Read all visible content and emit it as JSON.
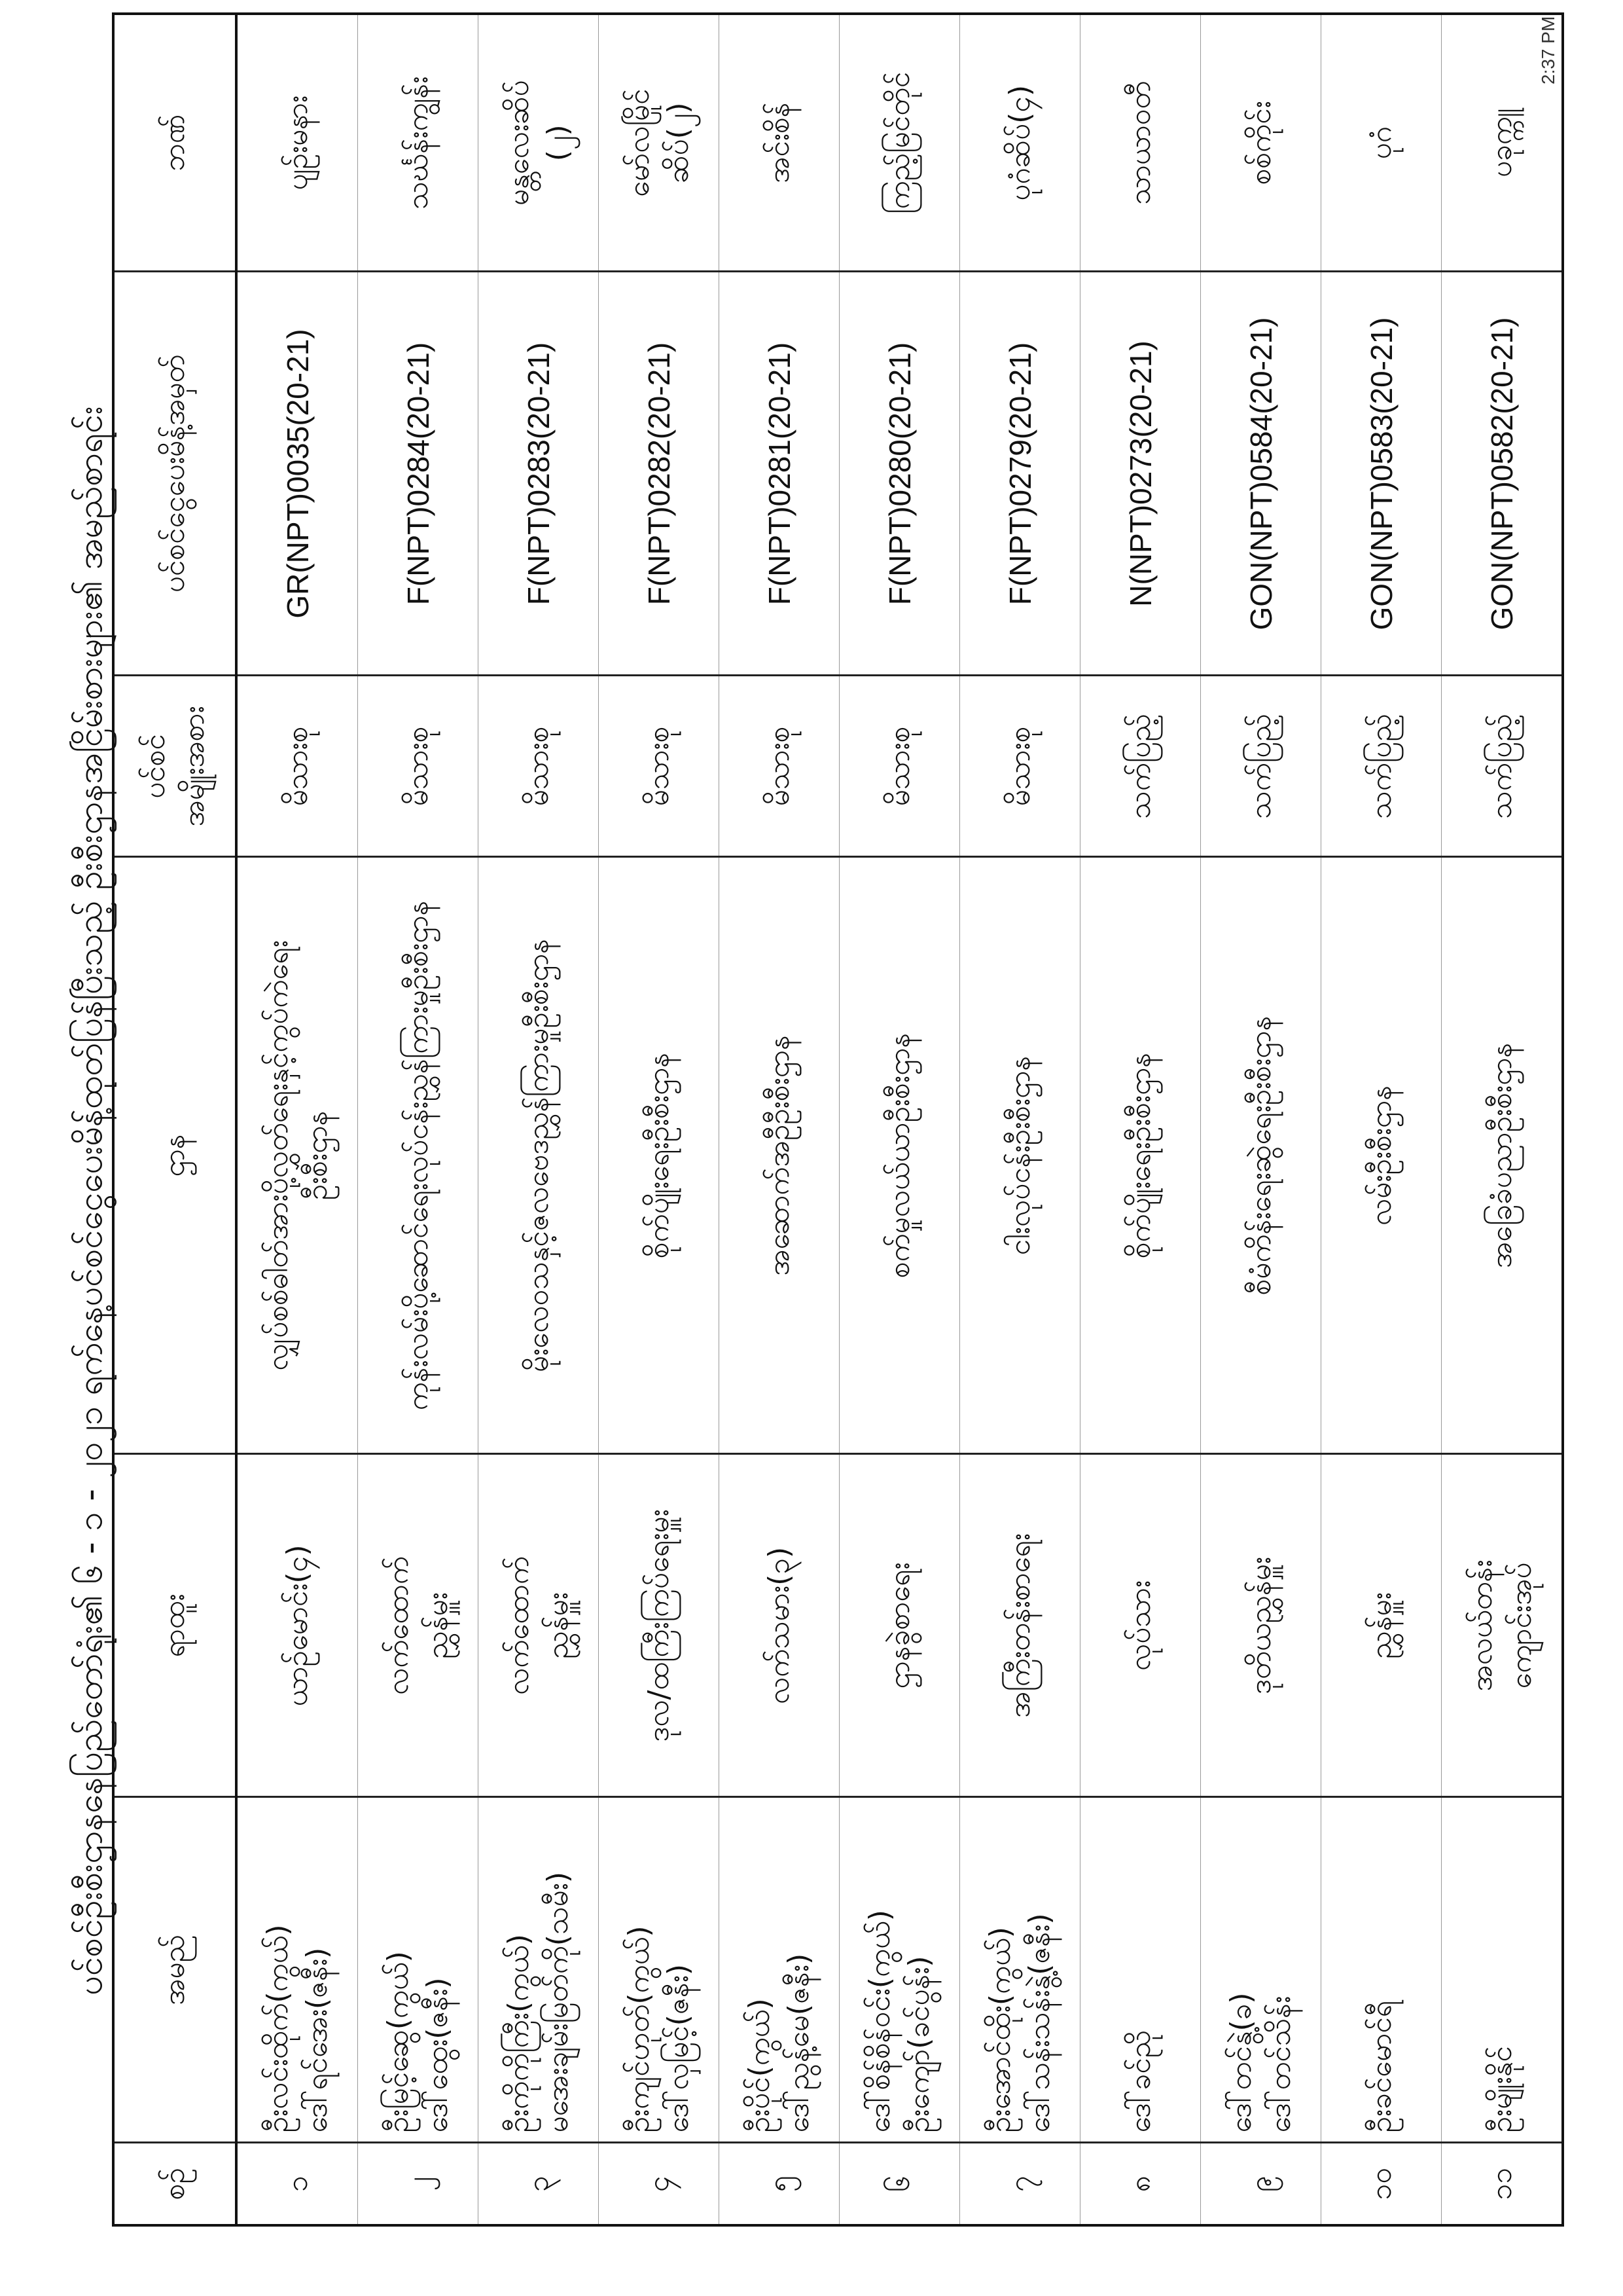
{
  "title": "ပင်စင်ဦးစီးဌာနနေပြည်တော်ရုံး၏ ၆ - ၁ - ၂၀၂၁ ရက်နေ့ပင်စင်ငွေပေးမိန့်ထုတ်ပြန်ပြီးသည့် ဦးစီးဌာနအငြိမ်းစားများ၏ အမည်စာရင်း",
  "timestamp": "2:37 PM",
  "headers": {
    "no": "စဉ်",
    "name": "အမည်",
    "position": "ရာထူး",
    "department": "ဌာန",
    "pension_type": [
      "ပင်စင်",
      "အမျိုးအစား"
    ],
    "order_no": "ပင်စင်ငွေပေးမိန့်အမှတ်",
    "bank": "ဘဏ်"
  },
  "rows": [
    {
      "no": "၁",
      "name": [
        "ဦးလင်းထိုက်(ကွယ်)",
        "ဒေါ်ရင်အေး(ဇနီး)"
      ],
      "position": [
        "ယာဉ်မောင်း(၄)"
      ],
      "department": [
        "လျှပ်စစ်ဓါတ်အားပို့လွှတ်ရေးနှင့်ကွပ်ကဲရေး",
        "ဦးစီးဌာန"
      ],
      "pension_type": "မိသားစု",
      "order_no": "GR(NPT)0035(20-21)",
      "bank": [
        "ပျဉ်းမနား"
      ]
    },
    {
      "no": "၂",
      "name": [
        "ဦးမြင့်ဆွေ(ကွယ်)",
        "ဒေါ်ထွေး(ဇနီး)"
      ],
      "position": [
        "လက်ထောက်",
        "ညွှန်မှူး"
      ],
      "department": [
        "ကုန်းလမ်းပို့ဆောင်ရေးလုပ်ငန်းညွှန်ကြားမှုဦးစီးဌာန"
      ],
      "pension_type": "မိသားစု",
      "order_no": "F(NPT)0284(20-21)",
      "bank": [
        "သင်္ဃန်းကျွန်း"
      ]
    },
    {
      "no": "၃",
      "name": [
        "ဦးကိုကိုကြီး(ကွယ်)",
        "မအေးချမ်းမြတ်ကို(သမီး)"
      ],
      "position": [
        "လက်ထောက်",
        "ညွှန်မှူး"
      ],
      "department": [
        "မိုးလေဝသနှင့်ဇလဗေဒညွှန်ကြားမှုဦးစီးဌာန"
      ],
      "pension_type": "မိသားစု",
      "order_no": "F(NPT)0283(20-21)",
      "bank": [
        "မန္တလေးဆိပ်",
        "(၂)"
      ]
    },
    {
      "no": "၄",
      "name": [
        "ဦးကျင်ဟုတ်(ကွယ်)",
        "ဒေါ်လှမြင့်(ဇနီး)"
      ],
      "position": [
        "ဒုလ/ထကြီးကြပ်ရေးမှူး"
      ],
      "department": [
        "စိုက်ပျိုးရေးဦးစီးဌာန"
      ],
      "pension_type": "မိသားစု",
      "order_no": "F(NPT)0282(20-21)",
      "bank": [
        "မော်လမြိုင်",
        "ဆိပ်(၂)"
      ]
    },
    {
      "no": "၅",
      "name": [
        "ဦးပိုင်(ကွယ်)",
        "ဒေါ်ညွန့်မေ(ဇနီး)"
      ],
      "position": [
        "လက်သမား(၃)"
      ],
      "department": [
        "အဆောက်အဦဦးစီးဌာန"
      ],
      "pension_type": "မိသားစု",
      "order_no": "F(NPT)0281(20-21)",
      "bank": [
        "အင်းစိန်"
      ]
    },
    {
      "no": "၆",
      "name": [
        "ဒေါ်စိန်စိန်ဝင်း(ကွယ်)",
        "ဦးကျော်(ခင်ပွန်း)"
      ],
      "position": [
        "ဌာနခွဲစာရေး"
      ],
      "department": [
        "စက်မှုလယ်ယာဦးစီးဌာန"
      ],
      "pension_type": "မိသားစု",
      "order_no": "F(NPT)0280(20-21)",
      "bank": [
        "ကြည့်မြင်တိုင်"
      ]
    },
    {
      "no": "၇",
      "name": [
        "ဦးအောင်ထိုး(ကွယ်)",
        "ဒေါ်သန်းသန်းနွဲ့(ဇနီး)"
      ],
      "position": [
        "အကြီးတန်းစာရေး"
      ],
      "department": [
        "ငါးလုပ်ငန်းဦးစီးဌာန"
      ],
      "pension_type": "မိသားစု",
      "order_no": "F(NPT)0279(20-21)",
      "bank": [
        "ပုဂံဆိပ်(၄)"
      ]
    },
    {
      "no": "၈",
      "name": [
        "ဒေါ်ခင်ညို"
      ],
      "position": [
        "လုပ်သား"
      ],
      "department": [
        "စိုက်ပျိုးရေးဦးစီးဌာန"
      ],
      "pension_type": "သက်ပြည့်",
      "order_no": "N(NPT)0273(20-21)",
      "bank": [
        "သာယာဝတီ"
      ]
    },
    {
      "no": "၉",
      "name": [
        "ဒေါ်တင်နွဲ့(ခ)",
        "ဒေါ်တင်သိန်း"
      ],
      "position": [
        "ဒုတိယညွှန်မှူး"
      ],
      "department": [
        "စီမံကိန်းရေးဆွဲရေးဦးစီးဌာန"
      ],
      "pension_type": "သက်ပြည့်",
      "order_no": "GON(NPT)0584(20-21)",
      "bank": [
        "စစ်ကိုင်း"
      ]
    },
    {
      "no": "၁၀",
      "name": [
        "ဦးခင်မောင်ရီ"
      ],
      "position": [
        "ညွှန်မှူး"
      ],
      "department": [
        "လမ်းဦးစီးဌာန"
      ],
      "pension_type": "သက်ပြည့်",
      "order_no": "GON(NPT)0583(20-21)",
      "bank": [
        "ပုဂံ"
      ]
    },
    {
      "no": "၁၁",
      "name": [
        "ဦးမျိုးနိုင်"
      ],
      "position": [
        "အလယ်တန်း",
        "ကျောင်းအုပ်"
      ],
      "department": [
        "အခြေခံပညာဦးစီးဌာန"
      ],
      "pension_type": "သက်ပြည့်",
      "order_no": "GON(NPT)0582(20-21)",
      "bank": [
        "ပခုက္ကူ"
      ]
    }
  ]
}
